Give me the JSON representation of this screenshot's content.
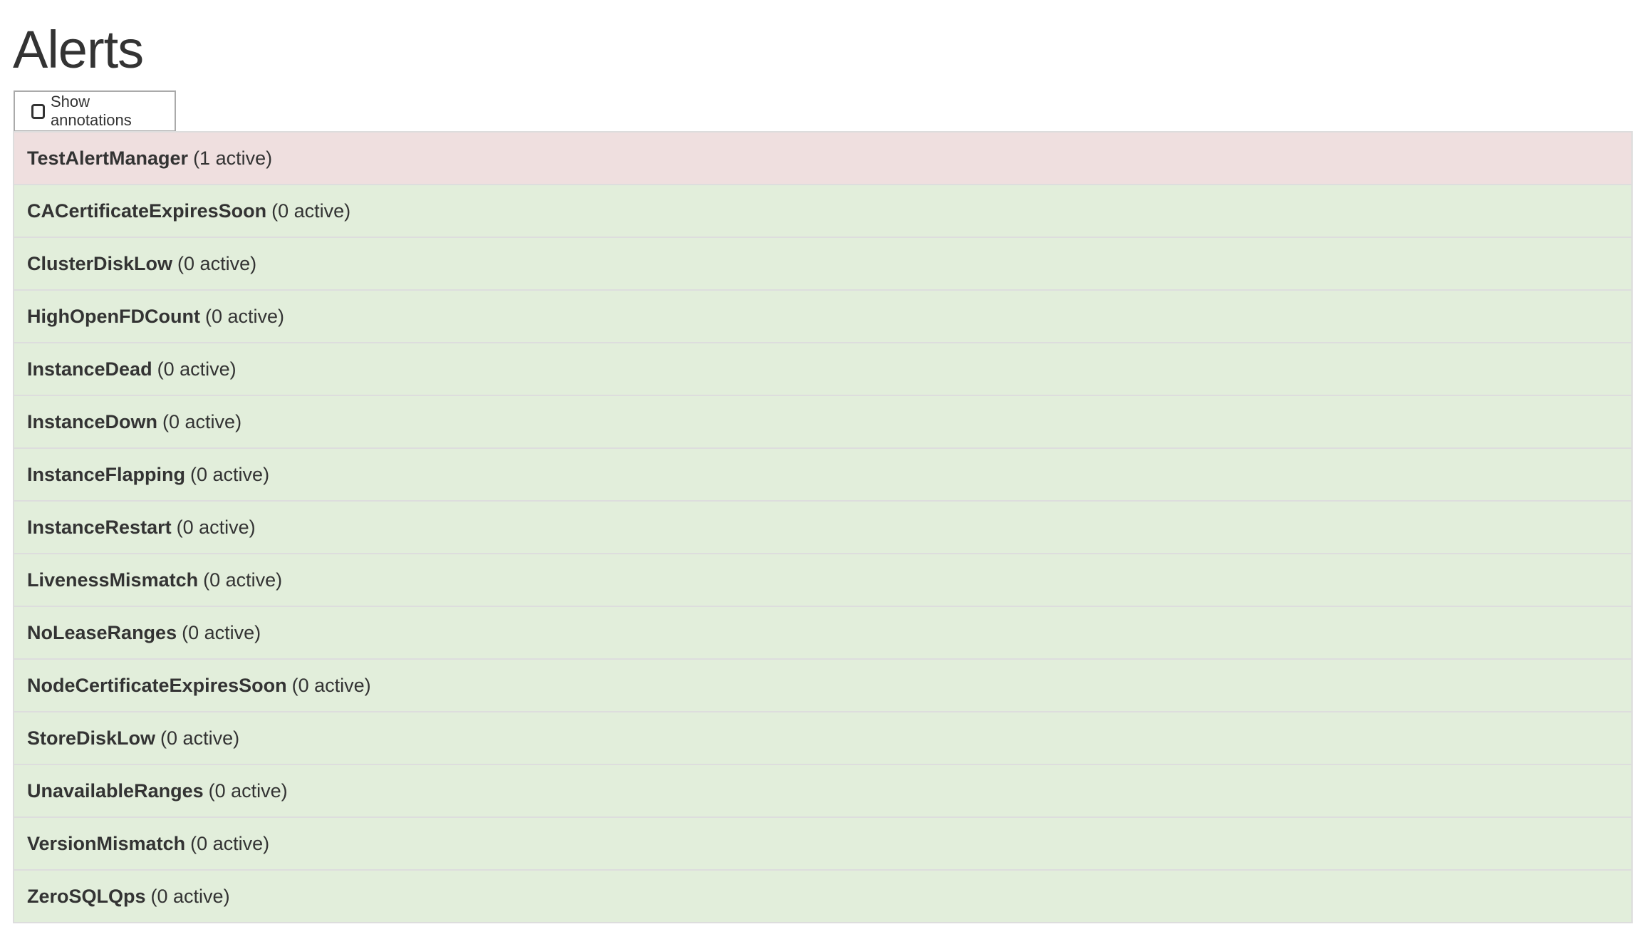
{
  "page": {
    "title": "Alerts"
  },
  "controls": {
    "show_annotations_label": "Show annotations",
    "show_annotations_checked": false
  },
  "colors": {
    "firing": "#efdfdf",
    "inactive": "#e2eedb",
    "border": "#dddddd"
  },
  "alerts": [
    {
      "name": "TestAlertManager",
      "count": "(1 active)",
      "state": "firing"
    },
    {
      "name": "CACertificateExpiresSoon",
      "count": "(0 active)",
      "state": "inactive"
    },
    {
      "name": "ClusterDiskLow",
      "count": "(0 active)",
      "state": "inactive"
    },
    {
      "name": "HighOpenFDCount",
      "count": "(0 active)",
      "state": "inactive"
    },
    {
      "name": "InstanceDead",
      "count": "(0 active)",
      "state": "inactive"
    },
    {
      "name": "InstanceDown",
      "count": "(0 active)",
      "state": "inactive"
    },
    {
      "name": "InstanceFlapping",
      "count": "(0 active)",
      "state": "inactive"
    },
    {
      "name": "InstanceRestart",
      "count": "(0 active)",
      "state": "inactive"
    },
    {
      "name": "LivenessMismatch",
      "count": "(0 active)",
      "state": "inactive"
    },
    {
      "name": "NoLeaseRanges",
      "count": "(0 active)",
      "state": "inactive"
    },
    {
      "name": "NodeCertificateExpiresSoon",
      "count": "(0 active)",
      "state": "inactive"
    },
    {
      "name": "StoreDiskLow",
      "count": "(0 active)",
      "state": "inactive"
    },
    {
      "name": "UnavailableRanges",
      "count": "(0 active)",
      "state": "inactive"
    },
    {
      "name": "VersionMismatch",
      "count": "(0 active)",
      "state": "inactive"
    },
    {
      "name": "ZeroSQLQps",
      "count": "(0 active)",
      "state": "inactive"
    }
  ]
}
